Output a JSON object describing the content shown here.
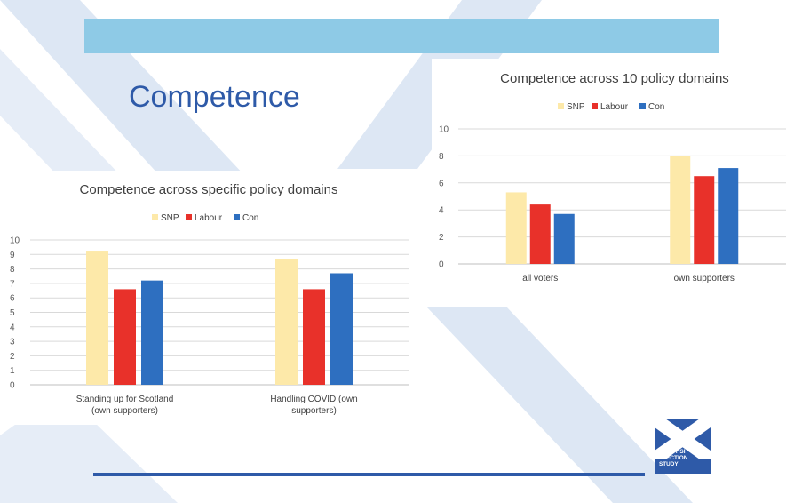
{
  "slide": {
    "title": "Competence",
    "colors": {
      "band": "#8ecae6",
      "title": "#2e5aa8",
      "decor": "#dde7f4",
      "bottom_line": "#2e5aa8"
    }
  },
  "logo": {
    "lines": [
      "SCOTTISH",
      "ELECTION",
      "STUDY"
    ],
    "color": "#2e5aa8",
    "icon": "saltire-flag-icon"
  },
  "chart_data": [
    {
      "type": "bar",
      "title": "Competence across specific policy domains",
      "categories": [
        "Standing up for Scotland (own supporters)",
        "Handling COVID (own supporters)"
      ],
      "category_lines": [
        [
          "Standing up for Scotland",
          "(own supporters)"
        ],
        [
          "Handling COVID (own",
          "supporters)"
        ]
      ],
      "series": [
        {
          "name": "SNP",
          "color": "#fde9a9",
          "values": [
            9.2,
            8.7
          ]
        },
        {
          "name": "Labour",
          "color": "#e8312a",
          "values": [
            6.6,
            6.6
          ]
        },
        {
          "name": "Con",
          "color": "#2e6fc0",
          "values": [
            7.2,
            7.7
          ]
        }
      ],
      "ylim": [
        0,
        10
      ],
      "yticks": [
        0,
        1,
        2,
        3,
        4,
        5,
        6,
        7,
        8,
        9,
        10
      ],
      "grid": true,
      "legend": "top-center"
    },
    {
      "type": "bar",
      "title": "Competence across 10 policy domains",
      "categories": [
        "all voters",
        "own supporters"
      ],
      "category_lines": [
        [
          "all voters"
        ],
        [
          "own supporters"
        ]
      ],
      "series": [
        {
          "name": "SNP",
          "color": "#fde9a9",
          "values": [
            5.3,
            8.0
          ]
        },
        {
          "name": "Labour",
          "color": "#e8312a",
          "values": [
            4.4,
            6.5
          ]
        },
        {
          "name": "Con",
          "color": "#2e6fc0",
          "values": [
            3.7,
            7.1
          ]
        }
      ],
      "ylim": [
        0,
        10
      ],
      "yticks": [
        0,
        2,
        4,
        6,
        8,
        10
      ],
      "grid": true,
      "legend": "top-center"
    }
  ]
}
